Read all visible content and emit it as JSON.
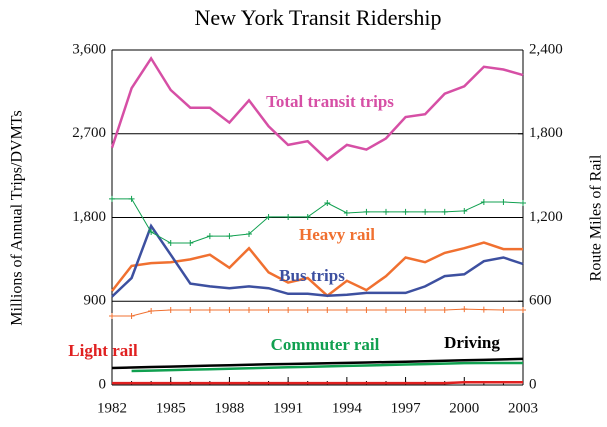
{
  "chart_data": {
    "type": "line",
    "title": "New York Transit Ridership",
    "y_label": "Millions of Annual Trips/DVMTs",
    "y2_label": "Route Miles of Rail",
    "x": [
      1982,
      1983,
      1984,
      1985,
      1986,
      1987,
      1988,
      1989,
      1990,
      1991,
      1992,
      1993,
      1994,
      1995,
      1996,
      1997,
      1998,
      1999,
      2000,
      2001,
      2002,
      2003
    ],
    "xlim": [
      1982,
      2003
    ],
    "xticks": [
      1982,
      1985,
      1988,
      1991,
      1994,
      1997,
      2000,
      2003
    ],
    "ylim": [
      0,
      3600
    ],
    "yticks": [
      0,
      900,
      {
        "value": 1800,
        "label": "1,800"
      },
      {
        "value": 2700,
        "label": "2,700"
      },
      {
        "value": 3600,
        "label": "3,600"
      }
    ],
    "y2lim": [
      0,
      2400
    ],
    "y2ticks": [
      0,
      600,
      {
        "value": 1200,
        "label": "1,200"
      },
      {
        "value": 1800,
        "label": "1,800"
      },
      {
        "value": 2400,
        "label": "2,400"
      }
    ],
    "grid": true,
    "series": [
      {
        "name": "Total transit trips",
        "color": "#d64fa5",
        "values": [
          2550,
          3190,
          3510,
          3170,
          2980,
          2980,
          2820,
          3060,
          2780,
          2580,
          2620,
          2420,
          2580,
          2530,
          2650,
          2880,
          2910,
          3130,
          3210,
          3420,
          3390,
          3330
        ]
      },
      {
        "name": "Heavy rail",
        "color": "#f07030",
        "values": [
          1010,
          1280,
          1310,
          1320,
          1350,
          1400,
          1260,
          1470,
          1210,
          1100,
          1150,
          960,
          1120,
          1020,
          1170,
          1370,
          1320,
          1420,
          1470,
          1530,
          1460,
          1460
        ]
      },
      {
        "name": "Bus trips",
        "color": "#3d50a0",
        "values": [
          950,
          1150,
          1710,
          1400,
          1090,
          1060,
          1040,
          1060,
          1040,
          980,
          980,
          960,
          970,
          990,
          990,
          990,
          1060,
          1170,
          1190,
          1330,
          1370,
          1300
        ]
      },
      {
        "name": "Light rail",
        "color": "#e02020",
        "values": [
          20,
          20,
          20,
          20,
          20,
          20,
          20,
          20,
          20,
          20,
          20,
          20,
          20,
          20,
          20,
          20,
          20,
          20,
          30,
          30,
          30,
          30
        ]
      },
      {
        "name": "Commuter rail",
        "color": "#10a050",
        "values": [
          null,
          150,
          155,
          160,
          165,
          170,
          175,
          180,
          185,
          190,
          195,
          200,
          205,
          210,
          215,
          220,
          225,
          230,
          235,
          236,
          236,
          236
        ]
      },
      {
        "name": "Driving",
        "color": "#000000",
        "values": [
          183,
          188,
          193,
          198,
          203,
          208,
          213,
          218,
          222,
          226,
          230,
          234,
          238,
          242,
          246,
          250,
          255,
          260,
          265,
          270,
          275,
          280
        ]
      },
      {
        "color": "#10a050",
        "axis": "y2",
        "marker": "+",
        "values": [
          1333,
          1333,
          1096,
          1017,
          1017,
          1067,
          1067,
          1082,
          1204,
          1204,
          1204,
          1304,
          1232,
          1240,
          1240,
          1240,
          1240,
          1240,
          1247,
          1311,
          1311,
          1304
        ]
      },
      {
        "color": "#f07030",
        "axis": "y2",
        "marker": "+",
        "values": [
          494,
          494,
          530,
          537,
          537,
          537,
          537,
          537,
          537,
          537,
          537,
          537,
          537,
          537,
          537,
          537,
          537,
          537,
          544,
          540,
          537,
          537
        ]
      }
    ]
  }
}
